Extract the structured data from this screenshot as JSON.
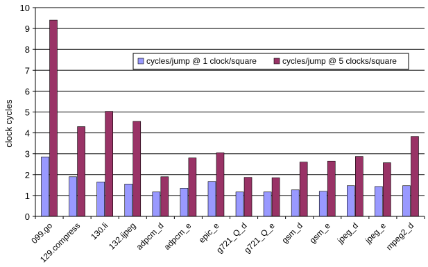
{
  "chart_data": {
    "type": "bar",
    "title": "",
    "xlabel": "",
    "ylabel": "clock cycles",
    "ylim": [
      0,
      10
    ],
    "yticks": [
      "0",
      "1",
      "2",
      "3",
      "4",
      "5",
      "6",
      "7",
      "8",
      "9",
      "10"
    ],
    "grid": true,
    "legend_position": "top-right",
    "categories": [
      "099.go",
      "129.compress",
      "130.li",
      "132.ijpeg",
      "adpcm_d",
      "adpcm_e",
      "epic_e",
      "g721_Q_d",
      "g721_Q_e",
      "gsm_d",
      "gsm_e",
      "jpeg_d",
      "jpeg_e",
      "mpeg2_d"
    ],
    "series": [
      {
        "name": "cycles/jump @ 1 clock/square",
        "color": "#9999ff",
        "values": [
          2.85,
          1.9,
          1.65,
          1.55,
          1.17,
          1.35,
          1.67,
          1.17,
          1.17,
          1.27,
          1.2,
          1.47,
          1.43,
          1.47
        ]
      },
      {
        "name": "cycles/jump @ 5 clocks/square",
        "color": "#993366",
        "values": [
          9.4,
          4.3,
          5.03,
          4.55,
          1.9,
          2.8,
          3.05,
          1.87,
          1.85,
          2.6,
          2.65,
          2.87,
          2.57,
          3.83
        ]
      }
    ]
  }
}
